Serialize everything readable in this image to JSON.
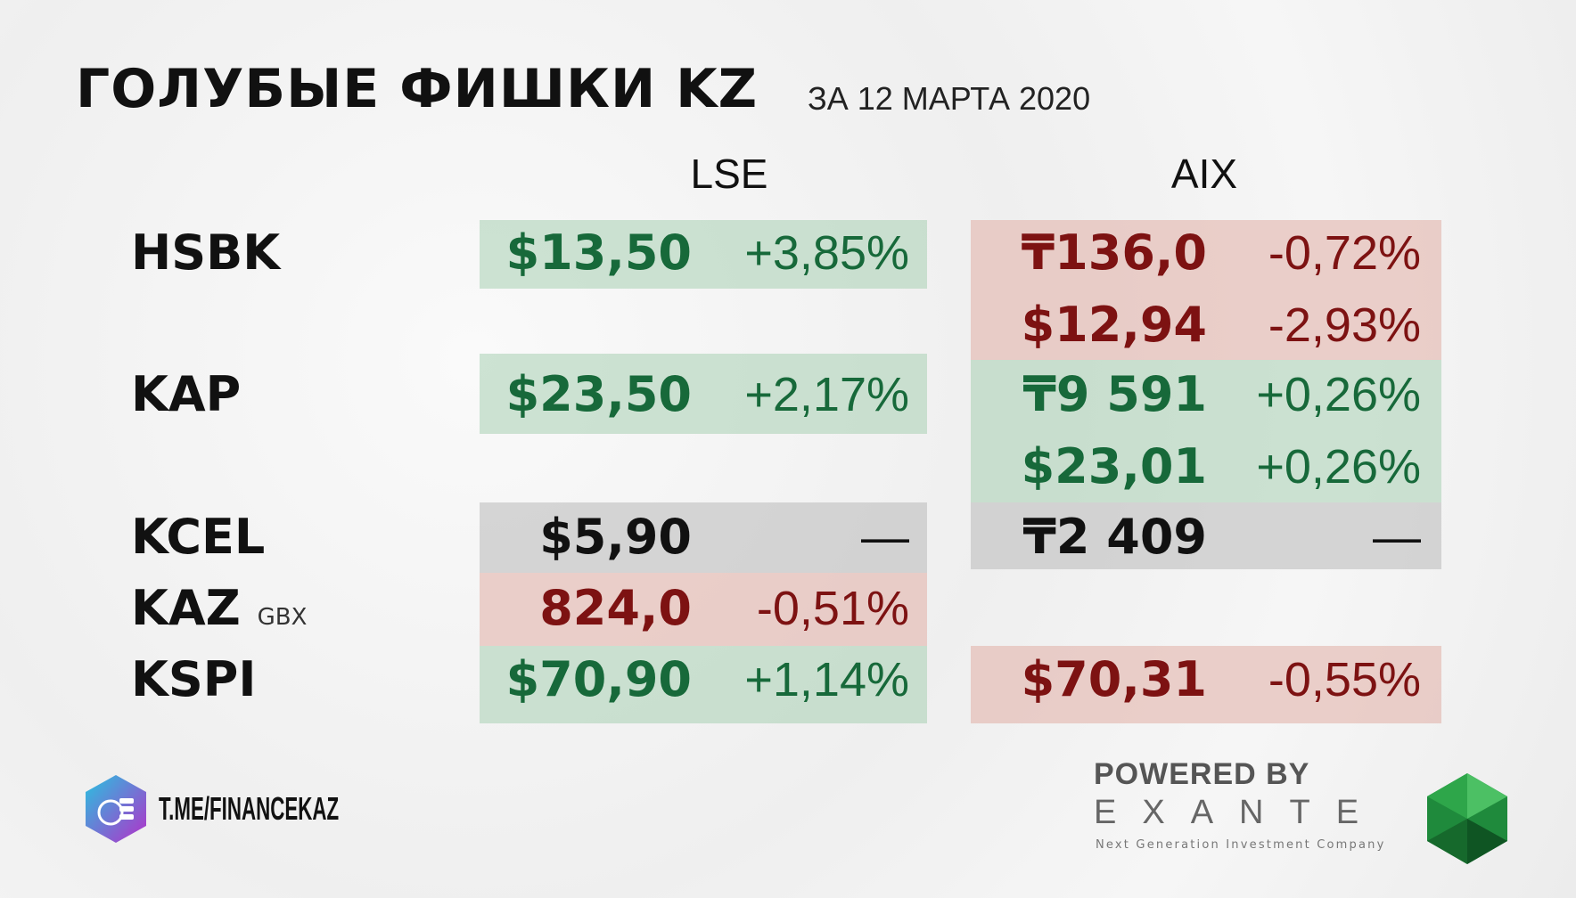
{
  "header": {
    "title": "ГОЛУБЫЕ ФИШКИ KZ",
    "subtitle": "ЗА 12 МАРТА 2020"
  },
  "columns": [
    "LSE",
    "AIX"
  ],
  "tickers": [
    {
      "name": "HSBK"
    },
    {
      "name": "KAP"
    },
    {
      "name": "KCEL"
    },
    {
      "name": "KAZ",
      "unit": "GBX"
    },
    {
      "name": "KSPI"
    }
  ],
  "lse": [
    {
      "price": "$13,50",
      "change": "+3,85%"
    },
    {
      "price": "$23,50",
      "change": "+2,17%"
    },
    {
      "price": "$5,90",
      "change": "—"
    },
    {
      "price": "824,0",
      "change": "-0,51%"
    },
    {
      "price": "$70,90",
      "change": "+1,14%"
    }
  ],
  "aix": [
    {
      "price": "₸136,0",
      "change": "-0,72%"
    },
    {
      "price": "$12,94",
      "change": "-2,93%"
    },
    {
      "price": "₸9 591",
      "change": "+0,26%"
    },
    {
      "price": "$23,01",
      "change": "+0,26%"
    },
    {
      "price": "₸2 409",
      "change": "—"
    },
    {
      "price": "$70,31",
      "change": "-0,55%"
    }
  ],
  "footer": {
    "channel": "T.ME/FINANCEKAZ",
    "powered": "POWERED BY",
    "brand": "EXANTE",
    "tagline": "Next Generation Investment Company"
  }
}
